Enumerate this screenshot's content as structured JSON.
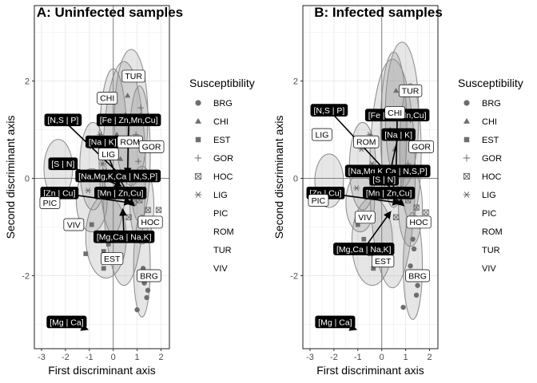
{
  "chart_data": [
    {
      "type": "scatter",
      "title": "A: Uninfected samples",
      "xlabel": "First discriminant axis",
      "ylabel": "Second discriminant axis",
      "xlim": [
        -3.3,
        2.35
      ],
      "ylim": [
        -3.5,
        3.55
      ],
      "xticks": [
        -3,
        -2,
        -1,
        0,
        1,
        2
      ],
      "yticks": [
        -2,
        0,
        2
      ],
      "grid": true,
      "groups": [
        {
          "name": "BRG",
          "cx": 1.2,
          "cy": -1.8,
          "rx": 0.35,
          "ry": 1.05
        },
        {
          "name": "CHI",
          "cx": 0.0,
          "cy": 0.55,
          "rx": 0.6,
          "ry": 1.7
        },
        {
          "name": "EST",
          "cx": -0.3,
          "cy": -1.2,
          "rx": 0.85,
          "ry": 0.85
        },
        {
          "name": "GOR",
          "cx": 1.1,
          "cy": 0.5,
          "rx": 0.45,
          "ry": 1.4
        },
        {
          "name": "HOC",
          "cx": 1.2,
          "cy": -0.55,
          "rx": 0.5,
          "ry": 0.8
        },
        {
          "name": "LIG",
          "cx": -0.85,
          "cy": 0.25,
          "rx": 0.55,
          "ry": 0.9
        },
        {
          "name": "PIC",
          "cx": -2.3,
          "cy": 0.2,
          "rx": 0.6,
          "ry": 0.6
        },
        {
          "name": "ROM",
          "cx": 0.45,
          "cy": 0.1,
          "rx": 0.9,
          "ry": 2.3
        },
        {
          "name": "TUR",
          "cx": 0.75,
          "cy": 1.25,
          "rx": 0.7,
          "ry": 1.4
        },
        {
          "name": "VIV",
          "cx": -0.9,
          "cy": -0.45,
          "rx": 0.65,
          "ry": 0.65
        }
      ],
      "group_labels": [
        {
          "text": "TUR",
          "x": 0.85,
          "y": 2.1
        },
        {
          "text": "CHI",
          "x": -0.25,
          "y": 1.65
        },
        {
          "text": "ROM",
          "x": 0.7,
          "y": 0.75
        },
        {
          "text": "GOR",
          "x": 1.6,
          "y": 0.65
        },
        {
          "text": "LIG",
          "x": -0.2,
          "y": 0.5
        },
        {
          "text": "PIC",
          "x": -2.65,
          "y": -0.5
        },
        {
          "text": "VIV",
          "x": -1.65,
          "y": -0.95
        },
        {
          "text": "HOC",
          "x": 1.55,
          "y": -0.9
        },
        {
          "text": "EST",
          "x": -0.05,
          "y": -1.65
        },
        {
          "text": "BRG",
          "x": 1.5,
          "y": -2.0
        }
      ],
      "vectors": [
        {
          "text": "[Mg | Ca]",
          "x": -1.1,
          "y": -3.1,
          "lx": -1.95,
          "ly": -2.95
        },
        {
          "text": "[Mg,Ca | Na,K]",
          "x": 0.4,
          "y": -0.65,
          "lx": 0.45,
          "ly": -1.2
        },
        {
          "text": "[Mn | Zn,Cu]",
          "x": 0.85,
          "y": -0.55,
          "lx": 0.3,
          "ly": -0.3
        },
        {
          "text": "[Zn | Cu]",
          "x": 0.7,
          "y": -0.5,
          "lx": -2.25,
          "ly": -0.3
        },
        {
          "text": "[Na,Mg,K,Ca | N,S,P]",
          "x": 0.6,
          "y": -0.3,
          "lx": 0.2,
          "ly": 0.05
        },
        {
          "text": "[S | N]",
          "x": 0.3,
          "y": -0.15,
          "lx": -2.1,
          "ly": 0.3
        },
        {
          "text": "[Na | K]",
          "x": 0.25,
          "y": -0.1,
          "lx": -0.45,
          "ly": 0.75
        },
        {
          "text": "[Fe | Zn,Mn,Cu]",
          "x": 0.6,
          "y": 0.1,
          "lx": 0.65,
          "ly": 1.2
        },
        {
          "text": "[N,S | P]",
          "x": 0.45,
          "y": 0.0,
          "lx": -2.1,
          "ly": 1.2
        }
      ],
      "points": [
        {
          "x": 1.3,
          "y": -2.15,
          "g": "BRG"
        },
        {
          "x": 1.45,
          "y": -2.3,
          "g": "BRG"
        },
        {
          "x": 1.4,
          "y": -2.45,
          "g": "BRG"
        },
        {
          "x": 1.0,
          "y": -2.7,
          "g": "BRG"
        },
        {
          "x": 1.25,
          "y": -1.85,
          "g": "BRG"
        },
        {
          "x": -0.1,
          "y": 1.2,
          "g": "CHI"
        },
        {
          "x": 0.15,
          "y": 0.9,
          "g": "CHI"
        },
        {
          "x": 0.3,
          "y": 0.4,
          "g": "CHI"
        },
        {
          "x": 0.5,
          "y": 1.3,
          "g": "CHI"
        },
        {
          "x": 0.6,
          "y": 1.7,
          "g": "CHI"
        },
        {
          "x": 0.25,
          "y": 0.1,
          "g": "CHI"
        },
        {
          "x": -0.4,
          "y": -1.5,
          "g": "EST"
        },
        {
          "x": -0.55,
          "y": -1.2,
          "g": "EST"
        },
        {
          "x": -1.15,
          "y": -1.55,
          "g": "EST"
        },
        {
          "x": -0.4,
          "y": -1.85,
          "g": "EST"
        },
        {
          "x": -0.9,
          "y": -0.95,
          "g": "EST"
        },
        {
          "x": -0.2,
          "y": -1.35,
          "g": "EST"
        },
        {
          "x": 1.05,
          "y": 0.35,
          "g": "GOR"
        },
        {
          "x": 1.15,
          "y": 1.3,
          "g": "GOR"
        },
        {
          "x": 0.95,
          "y": 0.9,
          "g": "GOR"
        },
        {
          "x": 1.05,
          "y": -0.3,
          "g": "GOR"
        },
        {
          "x": 1.15,
          "y": 1.45,
          "g": "GOR"
        },
        {
          "x": 0.65,
          "y": -0.8,
          "g": "HOC"
        },
        {
          "x": 1.45,
          "y": -0.65,
          "g": "HOC"
        },
        {
          "x": 1.9,
          "y": -0.65,
          "g": "HOC"
        },
        {
          "x": 1.1,
          "y": -0.45,
          "g": "HOC"
        },
        {
          "x": 0.85,
          "y": -0.5,
          "g": "HOC"
        },
        {
          "x": -0.55,
          "y": 0.9,
          "g": "LIG"
        },
        {
          "x": -0.9,
          "y": 0.65,
          "g": "LIG"
        },
        {
          "x": -0.45,
          "y": 0.3,
          "g": "LIG"
        },
        {
          "x": -1.05,
          "y": -0.25,
          "g": "LIG"
        },
        {
          "x": -0.35,
          "y": 0.15,
          "g": "LIG"
        }
      ]
    },
    {
      "type": "scatter",
      "title": "B: Infected samples",
      "xlabel": "First discriminant axis",
      "ylabel": "Second discriminant axis",
      "xlim": [
        -3.3,
        2.35
      ],
      "ylim": [
        -3.5,
        3.55
      ],
      "xticks": [
        -3,
        -2,
        -1,
        0,
        1,
        2
      ],
      "yticks": [
        -2,
        0,
        2
      ],
      "grid": true,
      "groups": [
        {
          "name": "BRG",
          "cx": 1.3,
          "cy": -1.8,
          "rx": 0.4,
          "ry": 1.1
        },
        {
          "name": "CHI",
          "cx": 0.5,
          "cy": 1.0,
          "rx": 0.55,
          "ry": 1.6
        },
        {
          "name": "EST",
          "cx": -0.4,
          "cy": -1.3,
          "rx": 0.85,
          "ry": 0.9
        },
        {
          "name": "GOR",
          "cx": 1.2,
          "cy": 0.55,
          "rx": 0.45,
          "ry": 1.4
        },
        {
          "name": "HOC",
          "cx": 1.2,
          "cy": -0.6,
          "rx": 0.5,
          "ry": 0.8
        },
        {
          "name": "LIG",
          "cx": -0.8,
          "cy": 0.25,
          "rx": 0.55,
          "ry": 0.9
        },
        {
          "name": "PIC",
          "cx": -2.2,
          "cy": -0.05,
          "rx": 0.6,
          "ry": 0.55
        },
        {
          "name": "ROM",
          "cx": 0.45,
          "cy": 0.1,
          "rx": 0.95,
          "ry": 2.35
        },
        {
          "name": "TUR",
          "cx": 0.85,
          "cy": 1.3,
          "rx": 0.7,
          "ry": 1.5
        },
        {
          "name": "VIV",
          "cx": -0.9,
          "cy": -0.5,
          "rx": 0.6,
          "ry": 0.6
        }
      ],
      "group_labels": [
        {
          "text": "TUR",
          "x": 1.2,
          "y": 1.8
        },
        {
          "text": "CHI",
          "x": 0.55,
          "y": 1.35
        },
        {
          "text": "ROM",
          "x": -0.65,
          "y": 0.75
        },
        {
          "text": "GOR",
          "x": 1.65,
          "y": 0.65
        },
        {
          "text": "LIG",
          "x": -2.5,
          "y": 0.9
        },
        {
          "text": "PIC",
          "x": -2.65,
          "y": -0.45
        },
        {
          "text": "VIV",
          "x": -0.7,
          "y": -0.8
        },
        {
          "text": "HOC",
          "x": 1.55,
          "y": -0.9
        },
        {
          "text": "EST",
          "x": 0.05,
          "y": -1.7
        },
        {
          "text": "BRG",
          "x": 1.5,
          "y": -2.0
        }
      ],
      "vectors": [
        {
          "text": "[Mg | Ca]",
          "x": -1.1,
          "y": -3.1,
          "lx": -1.95,
          "ly": -2.95
        },
        {
          "text": "[Mg,Ca | Na,K]",
          "x": 0.35,
          "y": -0.7,
          "lx": -0.75,
          "ly": -1.45
        },
        {
          "text": "[Mn | Zn,Cu]",
          "x": 0.9,
          "y": -0.55,
          "lx": 0.3,
          "ly": -0.3
        },
        {
          "text": "[Zn | Cu]",
          "x": 0.7,
          "y": -0.5,
          "lx": -2.35,
          "ly": -0.3
        },
        {
          "text": "[Na,Mg,K,Ca | N,S,P]",
          "x": 0.6,
          "y": -0.3,
          "lx": 0.25,
          "ly": 0.15
        },
        {
          "text": "[S | N]",
          "x": 0.3,
          "y": -0.15,
          "lx": 0.1,
          "ly": -0.02
        },
        {
          "text": "[Na | K]",
          "x": 0.25,
          "y": -0.1,
          "lx": 0.7,
          "ly": 0.9
        },
        {
          "text": "[Fe | Zn,Mn,Cu]",
          "x": 0.6,
          "y": 0.1,
          "lx": 0.65,
          "ly": 1.3
        },
        {
          "text": "[N,S | P]",
          "x": 0.45,
          "y": 0.0,
          "lx": -2.2,
          "ly": 1.4
        }
      ],
      "points": [
        {
          "x": 1.2,
          "y": -1.8,
          "g": "BRG"
        },
        {
          "x": 1.5,
          "y": -2.2,
          "g": "BRG"
        },
        {
          "x": 1.45,
          "y": -2.4,
          "g": "BRG"
        },
        {
          "x": 0.9,
          "y": -2.65,
          "g": "BRG"
        },
        {
          "x": 1.3,
          "y": -1.25,
          "g": "BRG"
        },
        {
          "x": 1.35,
          "y": -1.45,
          "g": "BRG"
        },
        {
          "x": 0.2,
          "y": 1.4,
          "g": "CHI"
        },
        {
          "x": 0.35,
          "y": 1.0,
          "g": "CHI"
        },
        {
          "x": 0.55,
          "y": 0.6,
          "g": "CHI"
        },
        {
          "x": 0.6,
          "y": 1.8,
          "g": "CHI"
        },
        {
          "x": 0.45,
          "y": 0.25,
          "g": "CHI"
        },
        {
          "x": -0.5,
          "y": -1.55,
          "g": "EST"
        },
        {
          "x": -0.75,
          "y": -1.25,
          "g": "EST"
        },
        {
          "x": -1.1,
          "y": -1.45,
          "g": "EST"
        },
        {
          "x": -0.35,
          "y": -1.85,
          "g": "EST"
        },
        {
          "x": -0.6,
          "y": -0.8,
          "g": "EST"
        },
        {
          "x": -1.0,
          "y": -0.95,
          "g": "EST"
        },
        {
          "x": 1.1,
          "y": 0.3,
          "g": "GOR"
        },
        {
          "x": 1.2,
          "y": 1.2,
          "g": "GOR"
        },
        {
          "x": 1.0,
          "y": 0.85,
          "g": "GOR"
        },
        {
          "x": 1.05,
          "y": -0.3,
          "g": "GOR"
        },
        {
          "x": 0.6,
          "y": -0.8,
          "g": "HOC"
        },
        {
          "x": 1.45,
          "y": -0.6,
          "g": "HOC"
        },
        {
          "x": 1.85,
          "y": -0.7,
          "g": "HOC"
        },
        {
          "x": 1.1,
          "y": -0.45,
          "g": "HOC"
        },
        {
          "x": -0.5,
          "y": 0.9,
          "g": "LIG"
        },
        {
          "x": -0.85,
          "y": 0.6,
          "g": "LIG"
        },
        {
          "x": -0.4,
          "y": 0.3,
          "g": "LIG"
        },
        {
          "x": -1.05,
          "y": -0.2,
          "g": "LIG"
        }
      ]
    }
  ],
  "legends": [
    {
      "title": "Susceptibility",
      "items": [
        {
          "label": "BRG",
          "shape": "circle"
        },
        {
          "label": "CHI",
          "shape": "triangle"
        },
        {
          "label": "EST",
          "shape": "square"
        },
        {
          "label": "GOR",
          "shape": "plus"
        },
        {
          "label": "HOC",
          "shape": "boxcross"
        },
        {
          "label": "LIG",
          "shape": "asterisk"
        },
        {
          "label": "PIC",
          "shape": "none"
        },
        {
          "label": "ROM",
          "shape": "none"
        },
        {
          "label": "TUR",
          "shape": "none"
        },
        {
          "label": "VIV",
          "shape": "none"
        }
      ]
    },
    {
      "title": "Susceptibility",
      "items": [
        {
          "label": "BRG",
          "shape": "circle"
        },
        {
          "label": "CHI",
          "shape": "triangle"
        },
        {
          "label": "EST",
          "shape": "square"
        },
        {
          "label": "GOR",
          "shape": "plus"
        },
        {
          "label": "HOC",
          "shape": "boxcross"
        },
        {
          "label": "LIG",
          "shape": "asterisk"
        },
        {
          "label": "PIC",
          "shape": "none"
        },
        {
          "label": "ROM",
          "shape": "none"
        },
        {
          "label": "TUR",
          "shape": "none"
        },
        {
          "label": "VIV",
          "shape": "none"
        }
      ]
    }
  ],
  "colors": {
    "ellipse_fill": "#8c8c8c",
    "ellipse_stroke": "#8a8a8a",
    "point": "#6e6e6e",
    "grid": "#ebebeb",
    "axis_zero": "#808080",
    "panel_border": "#333333",
    "label_black": "#000000",
    "label_white": "#ffffff"
  },
  "group_shapes": {
    "BRG": "circle",
    "CHI": "triangle",
    "EST": "square",
    "GOR": "plus",
    "HOC": "boxcross",
    "LIG": "asterisk",
    "PIC": "none",
    "ROM": "none",
    "TUR": "none",
    "VIV": "none"
  }
}
